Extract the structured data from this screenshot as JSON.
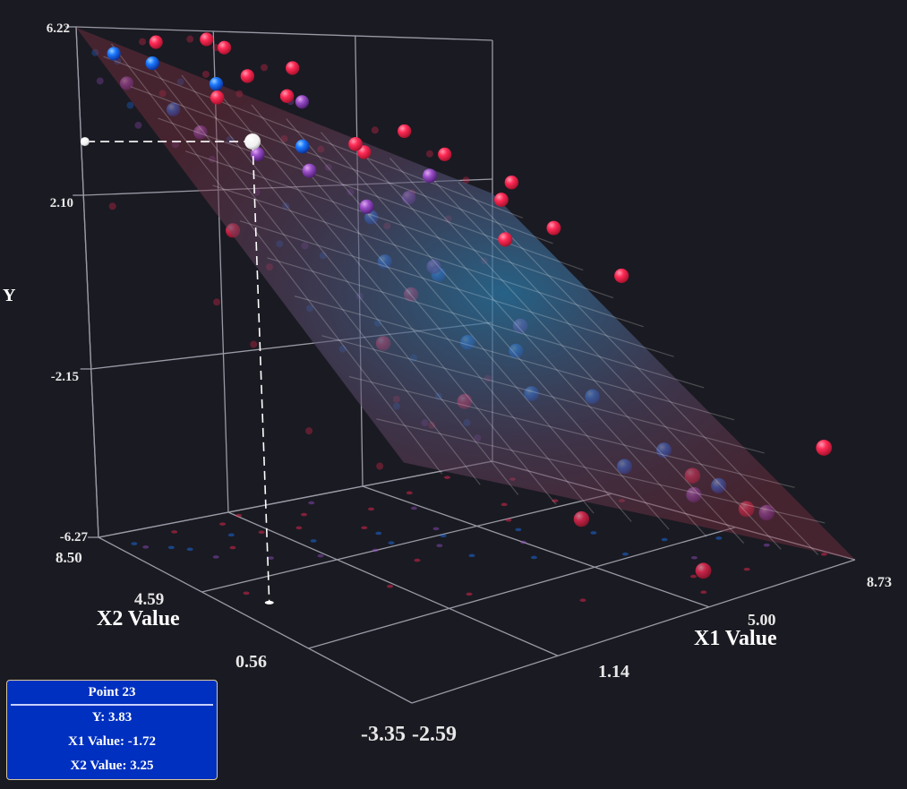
{
  "chart_data": {
    "type": "scatter3d",
    "title": "",
    "axes": {
      "y": {
        "label": "Y",
        "range": [
          -6.27,
          6.22
        ],
        "ticks": [
          "6.22",
          "2.10",
          "-2.15",
          "-6.27"
        ]
      },
      "x1": {
        "label": "X1 Value",
        "range": [
          -2.59,
          8.73
        ],
        "ticks": [
          "-2.59",
          "1.14",
          "5.00",
          "8.73"
        ]
      },
      "x2": {
        "label": "X2 Value",
        "range": [
          -3.35,
          8.5
        ],
        "ticks": [
          "8.50",
          "4.59",
          "0.56",
          "-3.35"
        ]
      }
    },
    "regression_plane": true,
    "colors": {
      "high": "#ff2a55",
      "mid": "#9a4fc8",
      "low": "#1a78ff",
      "highlight": "#ffffff"
    },
    "points": [
      {
        "x1": -2.1,
        "x2": 7.8,
        "y": 5.6,
        "g": "low"
      },
      {
        "x1": -1.5,
        "x2": 7.2,
        "y": 5.4,
        "g": "low"
      },
      {
        "x1": -0.8,
        "x2": 8.0,
        "y": 5.9,
        "g": "high"
      },
      {
        "x1": 0.5,
        "x2": 7.9,
        "y": 6.0,
        "g": "high"
      },
      {
        "x1": 1.2,
        "x2": 8.2,
        "y": 5.8,
        "g": "high"
      },
      {
        "x1": 0.9,
        "x2": 7.0,
        "y": 5.1,
        "g": "high"
      },
      {
        "x1": -0.3,
        "x2": 6.5,
        "y": 4.6,
        "g": "high"
      },
      {
        "x1": 1.8,
        "x2": 6.8,
        "y": 4.6,
        "g": "high"
      },
      {
        "x1": 2.5,
        "x2": 7.5,
        "y": 5.3,
        "g": "high"
      },
      {
        "x1": 3.2,
        "x2": 8.1,
        "y": 4.4,
        "g": "mid"
      },
      {
        "x1": -2.0,
        "x2": 7.5,
        "y": 4.9,
        "g": "mid"
      },
      {
        "x1": -1.2,
        "x2": 6.9,
        "y": 4.3,
        "g": "low"
      },
      {
        "x1": 0.2,
        "x2": 7.2,
        "y": 4.9,
        "g": "low"
      },
      {
        "x1": 1.5,
        "x2": 5.9,
        "y": 3.4,
        "g": "low"
      },
      {
        "x1": 3.0,
        "x2": 5.5,
        "y": 1.6,
        "g": "low"
      },
      {
        "x1": 4.0,
        "x2": 4.5,
        "y": 0.2,
        "g": "low"
      },
      {
        "x1": 5.5,
        "x2": 3.8,
        "y": -1.8,
        "g": "low"
      },
      {
        "x1": 6.5,
        "x2": 2.5,
        "y": -2.9,
        "g": "low"
      },
      {
        "x1": 7.2,
        "x2": 1.0,
        "y": -4.1,
        "g": "low"
      },
      {
        "x1": 8.0,
        "x2": 0.2,
        "y": -5.0,
        "g": "low"
      },
      {
        "x1": 4.5,
        "x2": 2.0,
        "y": -2.4,
        "g": "low"
      },
      {
        "x1": 3.6,
        "x2": 3.0,
        "y": -1.2,
        "g": "low"
      },
      {
        "x1": 6.0,
        "x2": 0.8,
        "y": -4.2,
        "g": "low"
      },
      {
        "x1": 2.8,
        "x2": 4.8,
        "y": 0.6,
        "g": "low"
      },
      {
        "x1": -1.0,
        "x2": 6.2,
        "y": 3.8,
        "g": "mid"
      },
      {
        "x1": 0.0,
        "x2": 5.5,
        "y": 3.3,
        "g": "mid"
      },
      {
        "x1": 1.0,
        "x2": 5.0,
        "y": 2.9,
        "g": "mid"
      },
      {
        "x1": 2.2,
        "x2": 4.6,
        "y": 2.0,
        "g": "mid"
      },
      {
        "x1": 3.5,
        "x2": 4.0,
        "y": 0.5,
        "g": "mid"
      },
      {
        "x1": 5.0,
        "x2": 3.0,
        "y": -1.0,
        "g": "mid"
      },
      {
        "x1": 8.3,
        "x2": -1.0,
        "y": -5.5,
        "g": "mid"
      },
      {
        "x1": 6.8,
        "x2": -0.5,
        "y": -4.8,
        "g": "mid"
      },
      {
        "x1": 4.8,
        "x2": 6.5,
        "y": 1.9,
        "g": "mid"
      },
      {
        "x1": 5.5,
        "x2": 7.5,
        "y": 3.6,
        "g": "high"
      },
      {
        "x1": 7.0,
        "x2": 8.0,
        "y": 2.9,
        "g": "high"
      },
      {
        "x1": 8.0,
        "x2": 7.0,
        "y": 2.1,
        "g": "high"
      },
      {
        "x1": 6.5,
        "x2": 5.5,
        "y": 1.8,
        "g": "high"
      },
      {
        "x1": 7.5,
        "x2": 5.0,
        "y": 1.0,
        "g": "high"
      },
      {
        "x1": 5.8,
        "x2": 4.5,
        "y": 0.9,
        "g": "high"
      },
      {
        "x1": 8.5,
        "x2": 4.0,
        "y": -0.3,
        "g": "high"
      },
      {
        "x1": 4.0,
        "x2": 7.0,
        "y": 3.1,
        "g": "high"
      },
      {
        "x1": 3.0,
        "x2": 6.0,
        "y": 3.4,
        "g": "high"
      },
      {
        "x1": 8.6,
        "x2": -2.5,
        "y": -3.8,
        "g": "high"
      },
      {
        "x1": 6.0,
        "x2": -1.5,
        "y": -4.0,
        "g": "high"
      },
      {
        "x1": 7.0,
        "x2": -2.0,
        "y": -4.9,
        "g": "high"
      },
      {
        "x1": 5.5,
        "x2": -2.5,
        "y": -5.8,
        "g": "high"
      },
      {
        "x1": 3.5,
        "x2": -1.0,
        "y": -4.5,
        "g": "high"
      },
      {
        "x1": 2.0,
        "x2": 1.0,
        "y": -2.0,
        "g": "high"
      },
      {
        "x1": 1.0,
        "x2": 2.5,
        "y": -0.8,
        "g": "high"
      },
      {
        "x1": -1.8,
        "x2": 4.0,
        "y": 1.8,
        "g": "high"
      },
      {
        "x1": 2.5,
        "x2": 3.5,
        "y": 0.0,
        "g": "high"
      },
      {
        "x1": 4.2,
        "x2": 5.0,
        "y": 2.6,
        "g": "mid"
      }
    ],
    "highlight": {
      "label": "Point 23",
      "x1": -1.72,
      "x2": 3.25,
      "y": 3.83
    }
  },
  "tooltip": {
    "title": "Point 23",
    "y": "Y: 3.83",
    "x1": "X1 Value: -1.72",
    "x2": "X2 Value: 3.25"
  }
}
